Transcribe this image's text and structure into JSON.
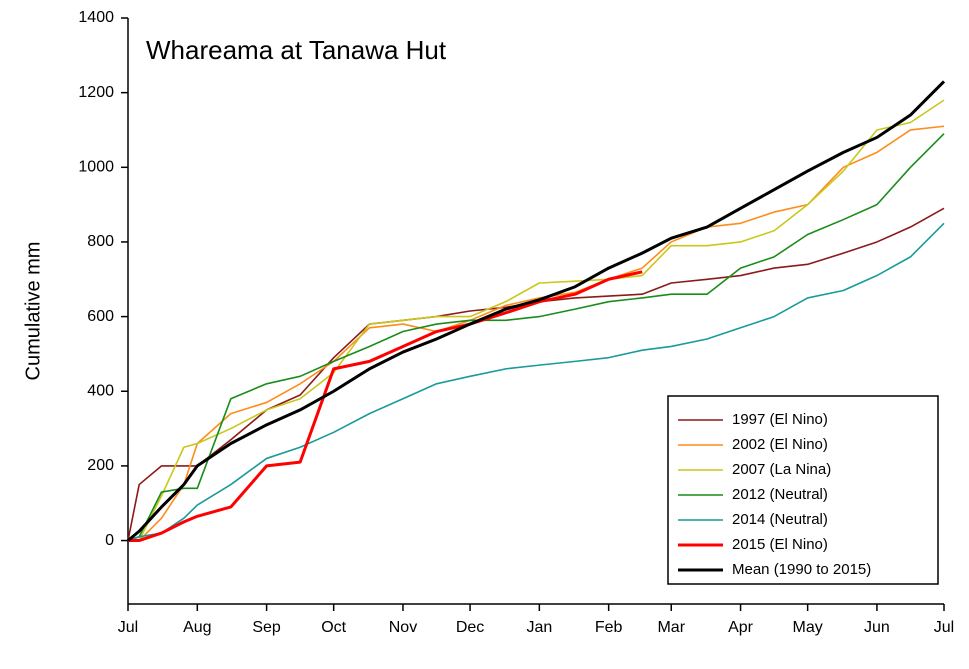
{
  "chart_data": {
    "type": "line",
    "title": "Whareama at Tanawa Hut",
    "y_label": "Cumulative mm",
    "x": [
      0,
      5,
      15,
      25,
      31,
      46,
      62,
      77,
      92,
      108,
      123,
      138,
      153,
      169,
      184,
      200,
      215,
      230,
      243,
      259,
      274,
      289,
      304,
      320,
      335,
      350,
      365
    ],
    "xlim": [
      0,
      365
    ],
    "xticks": [
      {
        "value": 0,
        "label": "Jul"
      },
      {
        "value": 31,
        "label": "Aug"
      },
      {
        "value": 62,
        "label": "Sep"
      },
      {
        "value": 92,
        "label": "Oct"
      },
      {
        "value": 123,
        "label": "Nov"
      },
      {
        "value": 153,
        "label": "Dec"
      },
      {
        "value": 184,
        "label": "Jan"
      },
      {
        "value": 215,
        "label": "Feb"
      },
      {
        "value": 243,
        "label": "Mar"
      },
      {
        "value": 274,
        "label": "Apr"
      },
      {
        "value": 304,
        "label": "May"
      },
      {
        "value": 335,
        "label": "Jun"
      },
      {
        "value": 365,
        "label": "Jul"
      }
    ],
    "ylim": [
      -170,
      1400
    ],
    "yticks": [
      0,
      200,
      400,
      600,
      800,
      1000,
      1200,
      1400
    ],
    "legend": "lower right",
    "series": [
      {
        "name": "1997 (El Nino)",
        "color": "#8b1a1a",
        "values": [
          0,
          150,
          200,
          200,
          200,
          270,
          350,
          390,
          490,
          580,
          590,
          600,
          615,
          625,
          640,
          650,
          655,
          660,
          690,
          700,
          710,
          730,
          740,
          770,
          800,
          840,
          890
        ]
      },
      {
        "name": "2002 (El Nino)",
        "color": "#ff8c1a",
        "values": [
          0,
          0,
          60,
          150,
          260,
          340,
          370,
          420,
          480,
          570,
          580,
          560,
          590,
          630,
          650,
          665,
          700,
          730,
          800,
          840,
          850,
          880,
          900,
          1000,
          1040,
          1100,
          1110
        ]
      },
      {
        "name": "2007 (La Nina)",
        "color": "#c8c81a",
        "values": [
          0,
          0,
          120,
          250,
          260,
          300,
          350,
          380,
          450,
          580,
          590,
          600,
          600,
          640,
          690,
          695,
          700,
          710,
          790,
          790,
          800,
          830,
          900,
          990,
          1100,
          1120,
          1180
        ]
      },
      {
        "name": "2012 (Neutral)",
        "color": "#1a8c1a",
        "values": [
          0,
          10,
          130,
          140,
          140,
          380,
          420,
          440,
          480,
          520,
          560,
          580,
          590,
          590,
          600,
          620,
          640,
          650,
          660,
          660,
          730,
          760,
          820,
          860,
          900,
          1000,
          1090
        ]
      },
      {
        "name": "2014 (Neutral)",
        "color": "#1a9a9a",
        "values": [
          0,
          10,
          20,
          60,
          95,
          150,
          220,
          250,
          290,
          340,
          380,
          420,
          440,
          460,
          470,
          480,
          490,
          510,
          520,
          540,
          570,
          600,
          650,
          670,
          710,
          760,
          850
        ]
      },
      {
        "name": "2015 (El Nino)",
        "color": "#ff0000",
        "values": [
          0,
          0,
          20,
          50,
          65,
          90,
          200,
          210,
          460,
          480,
          520,
          560,
          580,
          610,
          640,
          660,
          700,
          720,
          null,
          null,
          null,
          null,
          null,
          null,
          null,
          null,
          null
        ]
      },
      {
        "name": "Mean (1990 to 2015)",
        "color": "#000000",
        "values": [
          0,
          25,
          90,
          150,
          200,
          260,
          310,
          350,
          400,
          460,
          505,
          540,
          580,
          620,
          645,
          680,
          730,
          770,
          810,
          840,
          890,
          940,
          990,
          1040,
          1080,
          1140,
          1230
        ]
      }
    ]
  }
}
